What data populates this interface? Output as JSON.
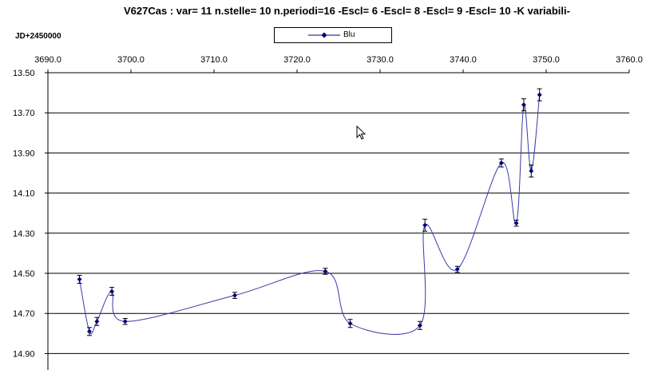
{
  "title": "V627Cas :  var= 11 n.stelle= 10 n.periodi=16 -Escl= 6   -Escl= 8   -Escl= 9   -Escl= 10   -K variabili-",
  "x_axis_note": "JD+2450000",
  "cursor_icon": "mouse-pointer-arrow-icon",
  "colors": {
    "series": "#000080",
    "curve": "#3a3aa8",
    "grid": "#000000"
  },
  "chart_data": {
    "type": "scatter",
    "title": "V627Cas :  var= 11 n.stelle= 10 n.periodi=16 -Escl= 6   -Escl= 8   -Escl= 9   -Escl= 10   -K variabili-",
    "xlabel": "JD+2450000",
    "ylabel": "",
    "xlim": [
      3690.0,
      3760.0
    ],
    "ylim": [
      13.5,
      14.96
    ],
    "y_reversed": true,
    "x_ticks": [
      "3690.0",
      "3700.0",
      "3710.0",
      "3720.0",
      "3730.0",
      "3740.0",
      "3750.0",
      "3760.0"
    ],
    "y_ticks": [
      "13.50",
      "13.70",
      "13.90",
      "14.10",
      "14.30",
      "14.50",
      "14.70",
      "14.90"
    ],
    "grid": true,
    "legend_position": "top-center",
    "smoothed_line": true,
    "series": [
      {
        "name": "Blu",
        "x": [
          3693.8,
          3695.0,
          3695.9,
          3697.7,
          3699.3,
          3712.5,
          3723.4,
          3726.4,
          3734.8,
          3735.4,
          3739.3,
          3744.6,
          3746.4,
          3747.3,
          3748.2,
          3749.2
        ],
        "y": [
          14.53,
          14.79,
          14.74,
          14.59,
          14.74,
          14.61,
          14.49,
          14.75,
          14.76,
          14.26,
          14.48,
          13.95,
          14.25,
          13.66,
          13.99,
          13.61
        ],
        "err": [
          0.02,
          0.02,
          0.02,
          0.02,
          0.015,
          0.015,
          0.015,
          0.02,
          0.02,
          0.03,
          0.015,
          0.02,
          0.015,
          0.03,
          0.03,
          0.03
        ]
      }
    ]
  }
}
